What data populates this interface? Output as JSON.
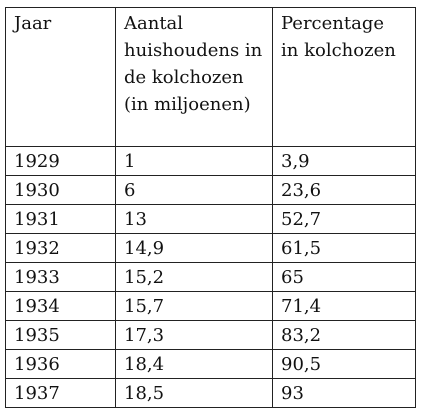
{
  "table": {
    "headers": [
      "Jaar",
      "Aantal huishoudens in de kolchozen (in miljoenen)",
      "Percentage in kolchozen"
    ],
    "rows": [
      [
        "1929",
        "1",
        "3,9"
      ],
      [
        "1930",
        "6",
        "23,6"
      ],
      [
        "1931",
        "13",
        "52,7"
      ],
      [
        "1932",
        "14,9",
        "61,5"
      ],
      [
        "1933",
        "15,2",
        "65"
      ],
      [
        "1934",
        "15,7",
        "71,4"
      ],
      [
        "1935",
        "17,3",
        "83,2"
      ],
      [
        "1936",
        "18,4",
        "90,5"
      ],
      [
        "1937",
        "18,5",
        "93"
      ]
    ]
  }
}
